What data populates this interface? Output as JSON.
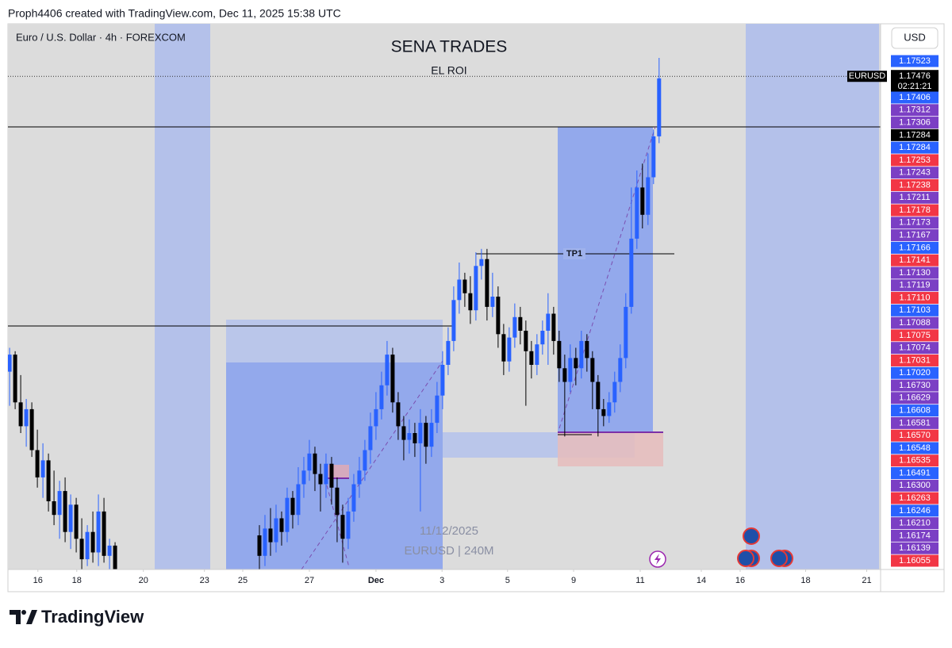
{
  "header": {
    "caption": "Proph4406 created with TradingView.com, Dec 11, 2025 15:38 UTC"
  },
  "chart_data": {
    "type": "candlestick",
    "symbol": "Euro / U.S. Dollar · 4h · FOREXCOM",
    "title": "SENA TRADES",
    "annotations": [
      "EL ROI",
      "TP1"
    ],
    "watermark": [
      "11/12/2025",
      "EURUSD | 240M"
    ],
    "currency": "USD",
    "up_color": "#2962ff",
    "down_color": "#000000",
    "xlim": [
      -0.3,
      156.9
    ],
    "ylim": [
      1.1603,
      1.1763
    ],
    "xticks": [
      {
        "value": 5.1,
        "label": "16"
      },
      {
        "value": 12.1,
        "label": "18"
      },
      {
        "value": 24.1,
        "label": "20"
      },
      {
        "value": 35.1,
        "label": "23"
      },
      {
        "value": 42,
        "label": "25"
      },
      {
        "value": 54,
        "label": "27"
      },
      {
        "value": 66,
        "label": "Dec"
      },
      {
        "value": 77.9,
        "label": "3"
      },
      {
        "value": 89.7,
        "label": "5"
      },
      {
        "value": 101.6,
        "label": "9"
      },
      {
        "value": 113.6,
        "label": "11"
      },
      {
        "value": 124.6,
        "label": "14"
      },
      {
        "value": 131.6,
        "label": "16"
      },
      {
        "value": 143.4,
        "label": "18"
      },
      {
        "value": 154.4,
        "label": "21"
      }
    ],
    "x": [
      0,
      1,
      2,
      3,
      4,
      5,
      6,
      7,
      8,
      9,
      10,
      11,
      12,
      13,
      14,
      15,
      16,
      17,
      18,
      19,
      45,
      46,
      47,
      48,
      49,
      50,
      51,
      52,
      53,
      54,
      55,
      56,
      57,
      58,
      59,
      60,
      61,
      62,
      63,
      64,
      65,
      66,
      67,
      68,
      69,
      70,
      71,
      72,
      73,
      74,
      75,
      76,
      77,
      78,
      79,
      80,
      81,
      82,
      83,
      84,
      85,
      86,
      87,
      88,
      89,
      90,
      91,
      92,
      93,
      94,
      95,
      96,
      97,
      98,
      99,
      100,
      101,
      102,
      103,
      104,
      105,
      106,
      107,
      108,
      109,
      110,
      111,
      112,
      113,
      114,
      115,
      116,
      117
    ],
    "open": [
      1.1661,
      1.1666,
      1.1652,
      1.1645,
      1.165,
      1.1638,
      1.163,
      1.1635,
      1.1623,
      1.1619,
      1.1626,
      1.1614,
      1.1622,
      1.1612,
      1.1606,
      1.1614,
      1.1608,
      1.162,
      1.1607,
      1.161,
      1.1613,
      1.1607,
      1.1615,
      1.1611,
      1.1618,
      1.1614,
      1.1624,
      1.1619,
      1.1628,
      1.1632,
      1.1637,
      1.1631,
      1.1628,
      1.1634,
      1.1627,
      1.1619,
      1.1612,
      1.162,
      1.1628,
      1.1632,
      1.1638,
      1.1645,
      1.165,
      1.1657,
      1.1666,
      1.1652,
      1.1645,
      1.1641,
      1.1643,
      1.164,
      1.1646,
      1.1639,
      1.1646,
      1.1654,
      1.1663,
      1.167,
      1.1682,
      1.1688,
      1.1684,
      1.1679,
      1.1692,
      1.1694,
      1.168,
      1.1683,
      1.1672,
      1.1664,
      1.1671,
      1.1677,
      1.1673,
      1.1667,
      1.1663,
      1.1669,
      1.1673,
      1.1678,
      1.167,
      1.1662,
      1.1658,
      1.1665,
      1.1662,
      1.167,
      1.1665,
      1.1658,
      1.165,
      1.1648,
      1.1652,
      1.1658,
      1.1665,
      1.168,
      1.17,
      1.1715,
      1.1707,
      1.1718,
      1.173
    ],
    "high": [
      1.1668,
      1.1667,
      1.166,
      1.1653,
      1.1652,
      1.1644,
      1.164,
      1.1637,
      1.1632,
      1.1629,
      1.163,
      1.1625,
      1.1624,
      1.1618,
      1.1616,
      1.162,
      1.1625,
      1.1624,
      1.1612,
      1.1611,
      1.1616,
      1.1619,
      1.1621,
      1.1622,
      1.162,
      1.1627,
      1.1626,
      1.1633,
      1.1636,
      1.1641,
      1.1639,
      1.1634,
      1.1637,
      1.1636,
      1.163,
      1.1622,
      1.1624,
      1.1631,
      1.1636,
      1.1641,
      1.1649,
      1.1655,
      1.1661,
      1.167,
      1.1668,
      1.1655,
      1.1648,
      1.1647,
      1.1646,
      1.165,
      1.1648,
      1.165,
      1.1658,
      1.1667,
      1.1674,
      1.1686,
      1.1693,
      1.169,
      1.1689,
      1.1696,
      1.1697,
      1.1697,
      1.169,
      1.1686,
      1.1675,
      1.1674,
      1.1681,
      1.168,
      1.1676,
      1.167,
      1.1672,
      1.1676,
      1.1684,
      1.168,
      1.1673,
      1.1666,
      1.1669,
      1.1668,
      1.1673,
      1.1672,
      1.1667,
      1.166,
      1.1653,
      1.1655,
      1.1661,
      1.1669,
      1.1684,
      1.1715,
      1.172,
      1.1722,
      1.1725,
      1.1732,
      1.1753
    ],
    "low": [
      1.1651,
      1.165,
      1.1643,
      1.1639,
      1.1636,
      1.1627,
      1.1624,
      1.162,
      1.1616,
      1.1612,
      1.1611,
      1.1609,
      1.1608,
      1.1603,
      1.1604,
      1.1605,
      1.1604,
      1.1605,
      1.1601,
      1.1601,
      1.1603,
      1.1604,
      1.1607,
      1.1608,
      1.161,
      1.1611,
      1.1615,
      1.1616,
      1.1624,
      1.1629,
      1.1626,
      1.162,
      1.1624,
      1.1622,
      1.1611,
      1.1605,
      1.1609,
      1.1617,
      1.1624,
      1.1629,
      1.1634,
      1.1641,
      1.1647,
      1.1654,
      1.1649,
      1.1641,
      1.1635,
      1.1637,
      1.1636,
      1.162,
      1.1634,
      1.1636,
      1.1643,
      1.165,
      1.166,
      1.1667,
      1.1678,
      1.168,
      1.1675,
      1.1676,
      1.1688,
      1.1676,
      1.1677,
      1.1668,
      1.166,
      1.1661,
      1.1668,
      1.1669,
      1.1651,
      1.1659,
      1.166,
      1.1666,
      1.1663,
      1.1666,
      1.1658,
      1.1642,
      1.1655,
      1.1657,
      1.1659,
      1.1661,
      1.165,
      1.1642,
      1.1645,
      1.1646,
      1.1649,
      1.1655,
      1.1662,
      1.1678,
      1.1697,
      1.1703,
      1.1704,
      1.1716,
      1.1728
    ],
    "close": [
      1.1666,
      1.1652,
      1.1645,
      1.165,
      1.1638,
      1.163,
      1.1635,
      1.1623,
      1.1619,
      1.1626,
      1.1614,
      1.1622,
      1.1612,
      1.1606,
      1.1614,
      1.1608,
      1.162,
      1.1607,
      1.161,
      1.1603,
      1.1607,
      1.1615,
      1.1611,
      1.1618,
      1.1614,
      1.1624,
      1.1619,
      1.1628,
      1.1632,
      1.1637,
      1.1631,
      1.1628,
      1.1634,
      1.1627,
      1.1619,
      1.1612,
      1.162,
      1.1628,
      1.1632,
      1.1638,
      1.1645,
      1.165,
      1.1657,
      1.1666,
      1.1652,
      1.1645,
      1.1641,
      1.1643,
      1.164,
      1.1646,
      1.1639,
      1.1646,
      1.1654,
      1.1663,
      1.167,
      1.1682,
      1.1688,
      1.1684,
      1.1679,
      1.1692,
      1.1694,
      1.168,
      1.1683,
      1.1672,
      1.1664,
      1.1671,
      1.1677,
      1.1673,
      1.1667,
      1.1663,
      1.1669,
      1.1673,
      1.1678,
      1.167,
      1.1662,
      1.1658,
      1.1665,
      1.1662,
      1.167,
      1.1665,
      1.1658,
      1.165,
      1.1648,
      1.1652,
      1.1658,
      1.1665,
      1.168,
      1.17,
      1.1715,
      1.1707,
      1.1718,
      1.173,
      1.1747
    ],
    "current_price": {
      "symbol": "EURUSD",
      "value": 1.17476,
      "countdown": "02:21:21",
      "color": "#000000"
    },
    "price_labels": [
      {
        "value": 1.17523,
        "color": "#2962ff"
      },
      {
        "value": 1.17406,
        "color": "#2962ff"
      },
      {
        "value": 1.17312,
        "color": "#7b3fc4"
      },
      {
        "value": 1.17306,
        "color": "#7b3fc4"
      },
      {
        "value": 1.17284,
        "color": "#000000"
      },
      {
        "value": 1.17284,
        "color": "#2962ff"
      },
      {
        "value": 1.17253,
        "color": "#f23645"
      },
      {
        "value": 1.17243,
        "color": "#7b3fc4"
      },
      {
        "value": 1.17238,
        "color": "#f23645"
      },
      {
        "value": 1.17211,
        "color": "#7b3fc4"
      },
      {
        "value": 1.17178,
        "color": "#f23645"
      },
      {
        "value": 1.17173,
        "color": "#7b3fc4"
      },
      {
        "value": 1.17167,
        "color": "#7b3fc4"
      },
      {
        "value": 1.17166,
        "color": "#2962ff"
      },
      {
        "value": 1.17141,
        "color": "#f23645"
      },
      {
        "value": 1.1713,
        "label": "1.17130",
        "color": "#7b3fc4"
      },
      {
        "value": 1.17119,
        "color": "#7b3fc4"
      },
      {
        "value": 1.1711,
        "label": "1.17110",
        "color": "#f23645"
      },
      {
        "value": 1.17103,
        "color": "#2962ff"
      },
      {
        "value": 1.17088,
        "color": "#7b3fc4"
      },
      {
        "value": 1.17075,
        "color": "#f23645"
      },
      {
        "value": 1.17074,
        "color": "#7b3fc4"
      },
      {
        "value": 1.17031,
        "color": "#f23645"
      },
      {
        "value": 1.1702,
        "label": "1.17020",
        "color": "#2962ff"
      },
      {
        "value": 1.1673,
        "label": "1.16730",
        "color": "#7b3fc4"
      },
      {
        "value": 1.16629,
        "color": "#7b3fc4"
      },
      {
        "value": 1.16608,
        "color": "#2962ff"
      },
      {
        "value": 1.16581,
        "color": "#7b3fc4"
      },
      {
        "value": 1.1657,
        "label": "1.16570",
        "color": "#f23645"
      },
      {
        "value": 1.16548,
        "color": "#2962ff"
      },
      {
        "value": 1.16535,
        "color": "#f23645"
      },
      {
        "value": 1.16491,
        "color": "#2962ff"
      },
      {
        "value": 1.163,
        "label": "1.16300",
        "color": "#7b3fc4"
      },
      {
        "value": 1.16263,
        "color": "#f23645"
      },
      {
        "value": 1.16246,
        "color": "#2962ff"
      },
      {
        "value": 1.1621,
        "label": "1.16210",
        "color": "#7b3fc4"
      },
      {
        "value": 1.16174,
        "color": "#7b3fc4"
      },
      {
        "value": 1.16139,
        "color": "#7b3fc4"
      },
      {
        "value": 1.16055,
        "color": "#f23645"
      }
    ]
  },
  "footer": {
    "logo": "TradingView"
  }
}
